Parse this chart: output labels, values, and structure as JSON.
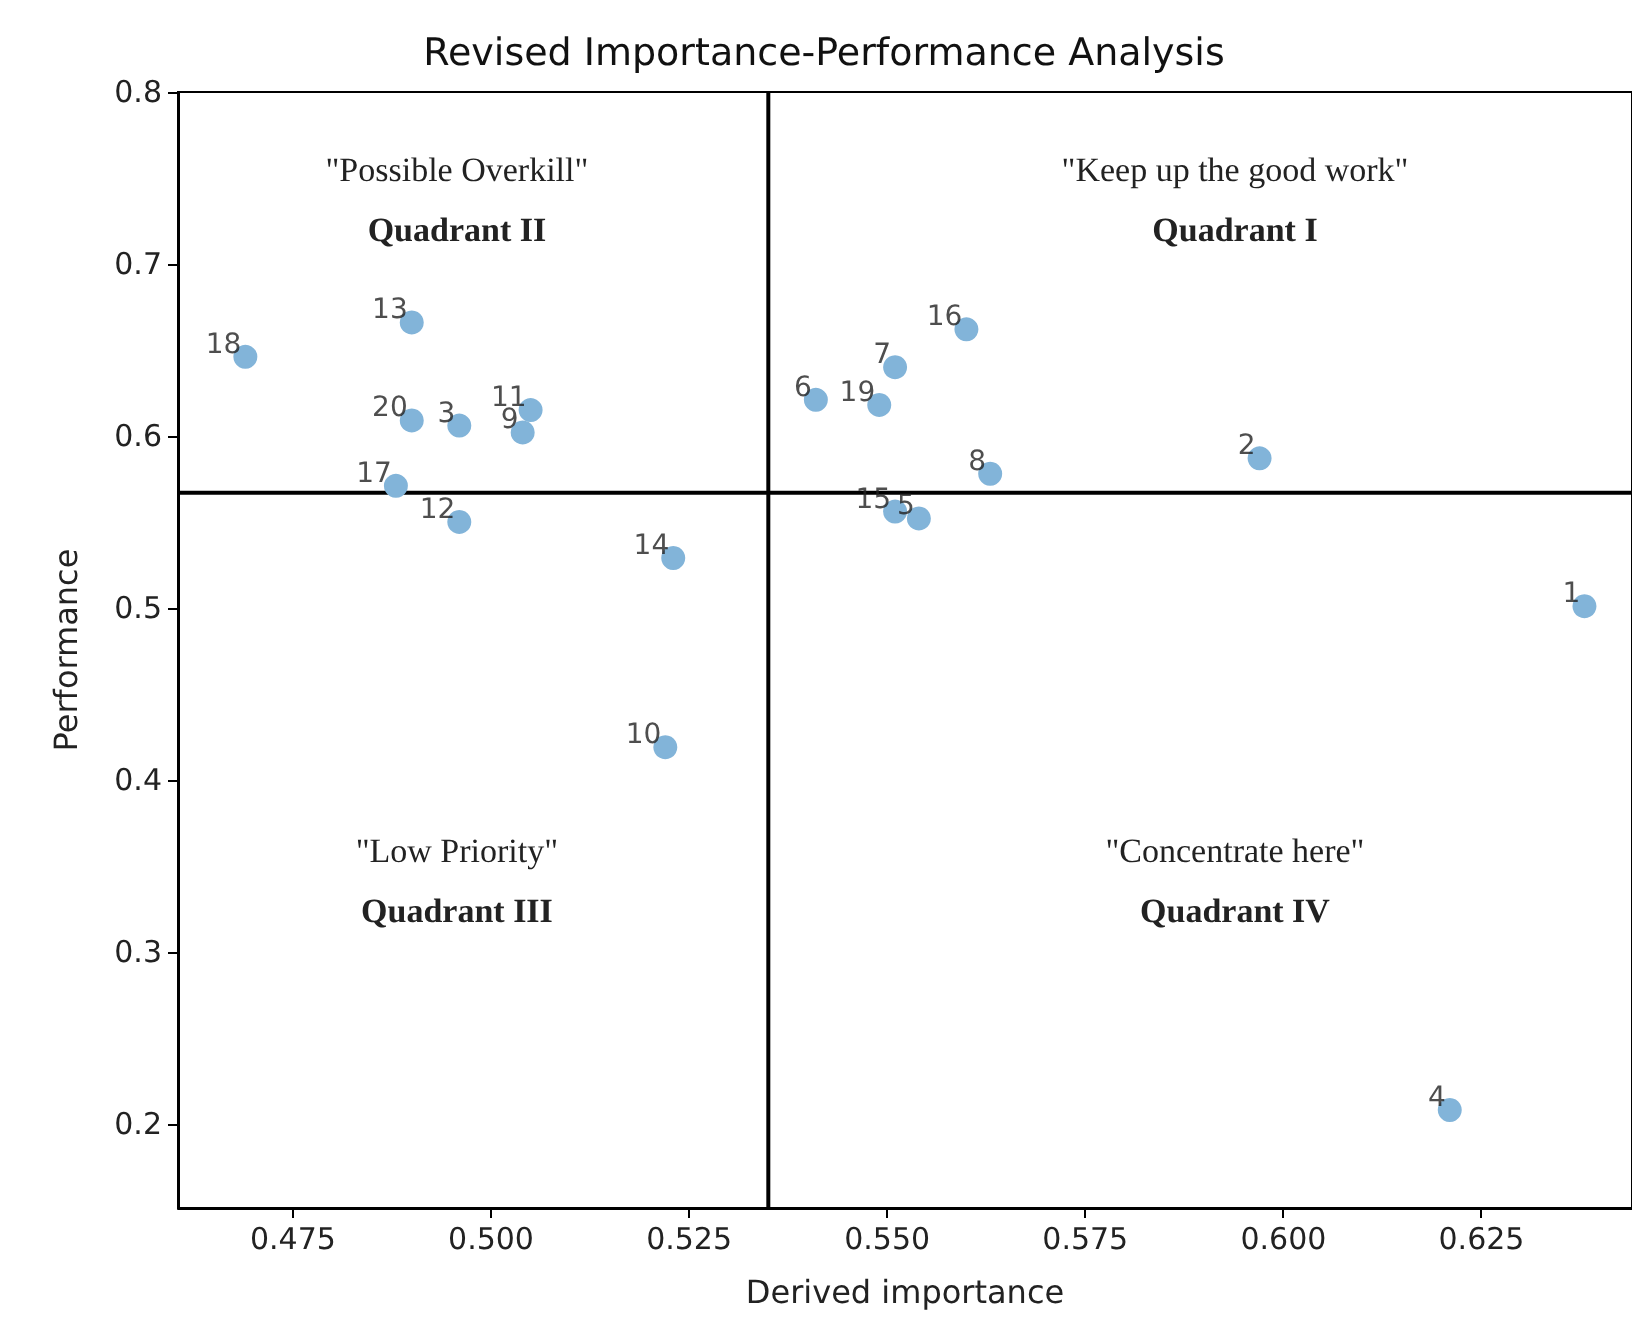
{
  "chart_data": {
    "type": "scatter",
    "title": "Revised Importance-Performance Analysis",
    "xlabel": "Derived importance",
    "ylabel": "Performance",
    "x": [
      0.638,
      0.597,
      0.496,
      0.621,
      0.554,
      0.541,
      0.551,
      0.563,
      0.504,
      0.522,
      0.505,
      0.496,
      0.49,
      0.523,
      0.551,
      0.56,
      0.488,
      0.469,
      0.549,
      0.49
    ],
    "series": [
      {
        "color": "#82b4d9",
        "values": [
          0.501,
          0.587,
          0.606,
          0.208,
          0.552,
          0.621,
          0.64,
          0.578,
          0.602,
          0.419,
          0.615,
          0.55,
          0.666,
          0.529,
          0.556,
          0.662,
          0.571,
          0.646,
          0.618,
          0.609
        ]
      }
    ],
    "xlim": [
      0.4605,
      0.644
    ],
    "ylim": [
      0.151,
      0.8
    ],
    "xticks": [
      0.475,
      {
        "value": 0.5,
        "label": "0.500"
      },
      0.525,
      {
        "value": 0.55,
        "label": "0.550"
      },
      0.575,
      {
        "value": 0.6,
        "label": "0.600"
      },
      0.625
    ],
    "yticks": [
      0.2,
      0.3,
      0.4,
      0.5,
      0.6,
      0.7,
      0.8
    ],
    "ref_lines": [
      {
        "axis": "x",
        "value": 0.535,
        "color": "#000000"
      },
      {
        "axis": "y",
        "value": 0.567,
        "color": "#000000"
      }
    ],
    "annotations": [
      "\"Possible Overkill\"",
      "Quadrant II",
      "\"Keep up the good work\"",
      "Quadrant I",
      "\"Low Priority\"",
      "Quadrant III",
      "\"Concentrate here\"",
      "Quadrant IV",
      {
        "text": "1",
        "x": 0.638,
        "y": 0.501
      },
      {
        "text": "2",
        "x": 0.597,
        "y": 0.587
      },
      {
        "text": "3",
        "x": 0.496,
        "y": 0.606
      },
      {
        "text": "4",
        "x": 0.621,
        "y": 0.208
      },
      {
        "text": "5",
        "x": 0.554,
        "y": 0.552
      },
      {
        "text": "6",
        "x": 0.541,
        "y": 0.621
      },
      {
        "text": "7",
        "x": 0.551,
        "y": 0.64
      },
      {
        "text": "8",
        "x": 0.563,
        "y": 0.578
      },
      {
        "text": "9",
        "x": 0.504,
        "y": 0.602
      },
      {
        "text": "10",
        "x": 0.522,
        "y": 0.419
      },
      {
        "text": "11",
        "x": 0.505,
        "y": 0.615
      },
      {
        "text": "12",
        "x": 0.496,
        "y": 0.55
      },
      {
        "text": "13",
        "x": 0.49,
        "y": 0.666
      },
      {
        "text": "14",
        "x": 0.523,
        "y": 0.529
      },
      {
        "text": "15",
        "x": 0.551,
        "y": 0.556
      },
      {
        "text": "16",
        "x": 0.56,
        "y": 0.662
      },
      {
        "text": "17",
        "x": 0.488,
        "y": 0.571
      },
      {
        "text": "18",
        "x": 0.469,
        "y": 0.646
      },
      {
        "text": "19",
        "x": 0.549,
        "y": 0.618
      },
      {
        "text": "20",
        "x": 0.49,
        "y": 0.609
      }
    ],
    "marker": "circle",
    "grid": false
  }
}
